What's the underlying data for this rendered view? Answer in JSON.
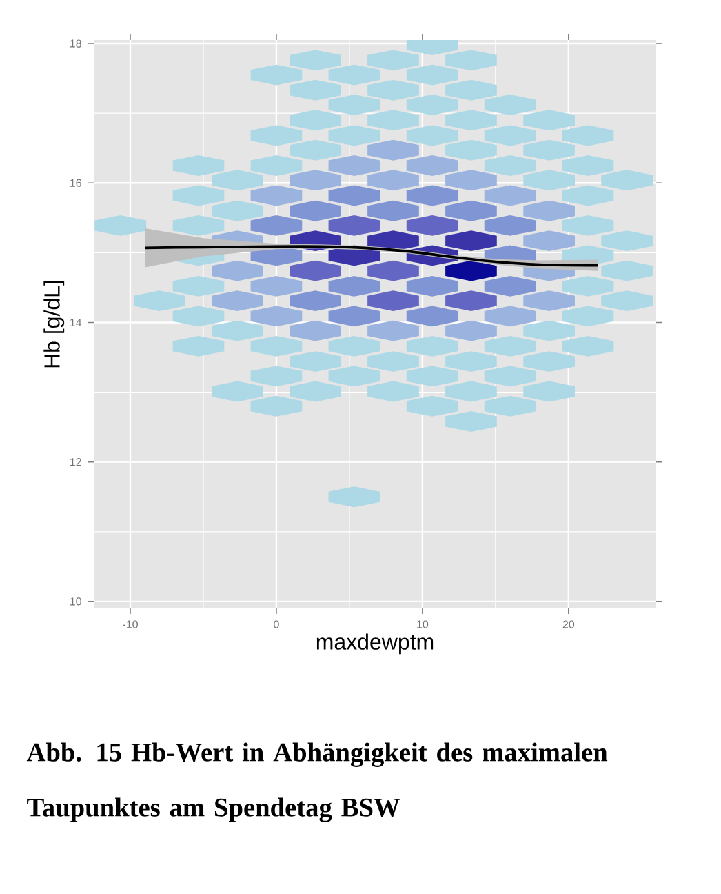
{
  "chart_data": {
    "type": "scatter",
    "xlabel": "maxdewptm",
    "ylabel": "Hb [g/dL]",
    "xlim": [
      -12.5,
      26
    ],
    "ylim": [
      9.9,
      18.05
    ],
    "xticks": [
      -10,
      0,
      10,
      20
    ],
    "yticks": [
      10,
      12,
      14,
      16,
      18
    ],
    "grid": true,
    "annotations": [
      "Abb. 15 Hb-Wert in Abhängigkeit des maximalen Taupunktes am Spendetag BSW"
    ],
    "series": [
      {
        "color": "#add8e6",
        "x": [
          5.33,
          13.33,
          0,
          10.67,
          16,
          -2.67,
          2.67,
          8,
          13.33,
          18.67,
          0,
          5.33,
          10.67,
          16,
          2.67,
          8,
          13.33,
          18.67,
          -5.33,
          0,
          5.33,
          10.67,
          16,
          21.33,
          -2.67,
          18.67,
          -5.33,
          21.33,
          -8,
          24,
          -5.33,
          21.33,
          24,
          -5.33,
          21.33,
          24,
          -10.67,
          -5.33,
          21.33,
          -2.67,
          -5.33,
          21.33,
          -2.67,
          18.67,
          24,
          -5.33,
          0,
          16,
          21.33,
          2.67,
          13.33,
          18.67,
          0,
          5.33,
          10.67,
          16,
          21.33,
          2.67,
          8,
          13.33,
          18.67,
          5.33,
          10.67,
          16,
          2.67,
          8,
          13.33,
          0,
          5.33,
          10.67,
          2.67,
          8,
          13.33,
          10.67
        ],
        "values": [
          11.5,
          12.58,
          12.8,
          12.8,
          12.8,
          13.01,
          13.01,
          13.01,
          13.01,
          13.01,
          13.23,
          13.23,
          13.23,
          13.23,
          13.44,
          13.44,
          13.44,
          13.44,
          13.66,
          13.66,
          13.66,
          13.66,
          13.66,
          13.66,
          13.88,
          13.88,
          14.09,
          14.09,
          14.31,
          14.31,
          14.52,
          14.52,
          14.74,
          14.96,
          14.96,
          15.17,
          15.39,
          15.39,
          15.39,
          15.6,
          15.82,
          15.82,
          16.04,
          16.04,
          16.04,
          16.25,
          16.25,
          16.25,
          16.25,
          16.47,
          16.47,
          16.47,
          16.68,
          16.68,
          16.68,
          16.68,
          16.68,
          16.9,
          16.9,
          16.9,
          16.9,
          17.12,
          17.12,
          17.12,
          17.33,
          17.33,
          17.33,
          17.55,
          17.55,
          17.55,
          17.76,
          17.76,
          17.76,
          17.98
        ]
      },
      {
        "color": "#9ab3df",
        "x": [
          2.67,
          8,
          13.33,
          0,
          16,
          -2.67,
          18.67,
          0,
          -2.67,
          18.67,
          -2.67,
          18.67,
          18.67,
          0,
          16,
          2.67,
          8,
          13.33,
          5.33,
          10.67,
          8
        ],
        "values": [
          13.88,
          13.88,
          13.88,
          14.09,
          14.09,
          14.31,
          14.31,
          14.52,
          14.74,
          14.74,
          15.17,
          15.17,
          15.6,
          15.82,
          15.82,
          16.04,
          16.04,
          16.04,
          16.25,
          16.25,
          16.47
        ]
      },
      {
        "color": "#8095d4",
        "x": [
          5.33,
          10.67,
          2.67,
          5.33,
          10.67,
          16,
          0,
          16,
          0,
          16,
          2.67,
          8,
          13.33,
          5.33,
          10.67
        ],
        "values": [
          14.09,
          14.09,
          14.31,
          14.52,
          14.52,
          14.52,
          14.96,
          14.96,
          15.39,
          15.39,
          15.6,
          15.6,
          15.6,
          15.82,
          15.82
        ]
      },
      {
        "color": "#6466c3",
        "x": [
          8,
          13.33,
          2.67,
          8,
          5.33,
          10.67
        ],
        "values": [
          14.31,
          14.31,
          14.74,
          14.74,
          15.39,
          15.39
        ]
      },
      {
        "color": "#3b33a8",
        "x": [
          5.33,
          10.67,
          2.67,
          8,
          13.33
        ],
        "values": [
          14.96,
          14.96,
          15.17,
          15.17,
          15.17
        ]
      },
      {
        "color": "#0a0a96",
        "x": [
          13.33
        ],
        "values": [
          14.74
        ]
      },
      {
        "type": "line",
        "color": "#000000",
        "x": [
          -9,
          -5,
          0,
          3,
          6,
          9,
          12,
          15,
          18,
          22
        ],
        "values": [
          15.07,
          15.08,
          15.09,
          15.09,
          15.07,
          15.02,
          14.94,
          14.87,
          14.83,
          14.82
        ],
        "lower": [
          14.79,
          14.95,
          15.05,
          15.06,
          15.04,
          14.99,
          14.91,
          14.83,
          14.77,
          14.74
        ],
        "upper": [
          15.35,
          15.21,
          15.13,
          15.12,
          15.1,
          15.05,
          14.97,
          14.91,
          14.89,
          14.9
        ]
      }
    ]
  }
}
